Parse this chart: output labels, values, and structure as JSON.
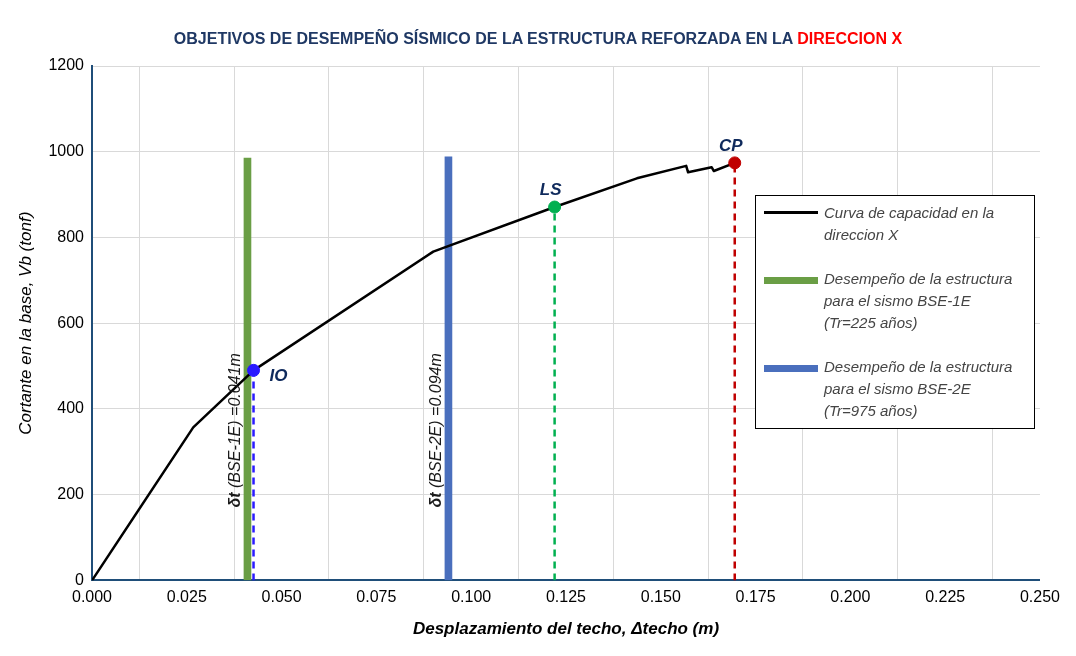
{
  "chart_data": {
    "type": "line",
    "title": "OBJETIVOS DE DESEMPEÑO SÍSMICO DE LA ESTRUCTURA REFORZADA EN LA DIRECCION X",
    "xlabel": "Desplazamiento del techo, Δtecho (m)",
    "ylabel": "Cortante en la base, Vb (tonf)",
    "xlim": [
      0,
      0.25
    ],
    "xticks": [
      {
        "value": 0,
        "label": "0.000"
      },
      {
        "value": 0.025,
        "label": "0.025"
      },
      {
        "value": 0.05,
        "label": "0.050"
      },
      {
        "value": 0.075,
        "label": "0.075"
      },
      {
        "value": 0.1,
        "label": "0.100"
      },
      {
        "value": 0.125,
        "label": "0.125"
      },
      {
        "value": 0.15,
        "label": "0.150"
      },
      {
        "value": 0.175,
        "label": "0.175"
      },
      {
        "value": 0.2,
        "label": "0.200"
      },
      {
        "value": 0.225,
        "label": "0.225"
      },
      {
        "value": 0.25,
        "label": "0.250"
      }
    ],
    "ylim": [
      0,
      1200
    ],
    "yticks": [
      0,
      200,
      400,
      600,
      800,
      1000,
      1200
    ],
    "grid": true,
    "legend": "right",
    "series": [
      {
        "name": "Curva de capacidad en la direccion X",
        "color": "#000000",
        "line_style": "solid",
        "x": [
          0,
          0.0267,
          0.0426,
          0.09,
          0.122,
          0.1437,
          0.1567,
          0.1572,
          0.1634,
          0.164,
          0.1695
        ],
        "values": [
          0,
          357,
          490,
          767,
          871,
          938,
          967,
          952,
          964,
          955,
          974
        ]
      },
      {
        "type": "bar",
        "name": "Desempeño de la estructura para el sismo BSE-1E (Tr=225 años)",
        "color": "#6a9e45",
        "x": [
          0.041
        ],
        "values": [
          985
        ]
      },
      {
        "type": "bar",
        "name": "Desempeño de la estructura para el sismo BSE-2E (Tr=975 años)",
        "color": "#4a6fbd",
        "x": [
          0.094
        ],
        "values": [
          988
        ]
      },
      {
        "color": "#2a1aff",
        "line_style": "dashed",
        "x": [
          0.0426,
          0.0426
        ],
        "values": [
          0,
          490
        ]
      },
      {
        "color": "#00b050",
        "line_style": "dashed",
        "x": [
          0.122,
          0.122
        ],
        "values": [
          0,
          871
        ]
      },
      {
        "color": "#c00000",
        "line_style": "dashed",
        "x": [
          0.1695,
          0.1695
        ],
        "values": [
          0,
          974
        ]
      },
      {
        "type": "scatter",
        "marker": "circle",
        "colors": [
          "#2a1aff",
          "#00b050",
          "#c00000"
        ],
        "x": [
          0.0426,
          0.122,
          0.1695
        ],
        "values": [
          490,
          871,
          974
        ]
      }
    ],
    "annotations": [
      {
        "text": "IO",
        "x": 0.0426,
        "y": 490
      },
      {
        "text": "LS",
        "x": 0.122,
        "y": 871
      },
      {
        "text": "CP",
        "x": 0.1695,
        "y": 974
      },
      {
        "text": "δt (BSE-1E) =0.041m",
        "x": 0.041,
        "y": 350
      },
      {
        "text": "δt (BSE-2E) =0.094m",
        "x": 0.094,
        "y": 350
      }
    ]
  }
}
